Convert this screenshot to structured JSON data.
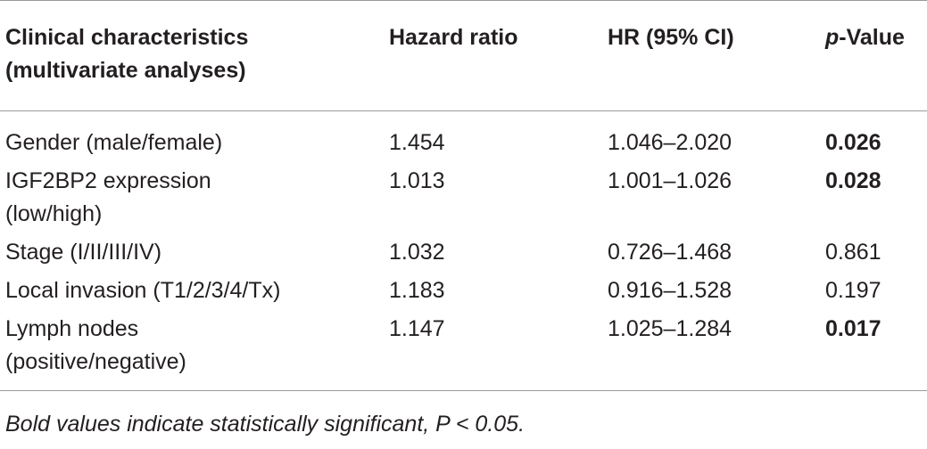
{
  "table": {
    "headers": {
      "characteristics_line1": "Clinical characteristics",
      "characteristics_line2": "(multivariate analyses)",
      "hazard_ratio": "Hazard ratio",
      "hr_ci": "HR (95% CI)",
      "p_value_prefix": "p",
      "p_value_suffix": "-Value"
    },
    "rows": [
      {
        "characteristic_line1": "Gender (male/female)",
        "characteristic_line2": "",
        "hazard_ratio": "1.454",
        "hr_ci": "1.046–2.020",
        "p_value": "0.026",
        "significant": true
      },
      {
        "characteristic_line1": "IGF2BP2 expression",
        "characteristic_line2": "(low/high)",
        "hazard_ratio": "1.013",
        "hr_ci": "1.001–1.026",
        "p_value": "0.028",
        "significant": true
      },
      {
        "characteristic_line1": "Stage (I/II/III/IV)",
        "characteristic_line2": "",
        "hazard_ratio": "1.032",
        "hr_ci": "0.726–1.468",
        "p_value": "0.861",
        "significant": false
      },
      {
        "characteristic_line1": "Local invasion (T1/2/3/4/Tx)",
        "characteristic_line2": "",
        "hazard_ratio": "1.183",
        "hr_ci": "0.916–1.528",
        "p_value": "0.197",
        "significant": false
      },
      {
        "characteristic_line1": "Lymph nodes",
        "characteristic_line2": "(positive/negative)",
        "hazard_ratio": "1.147",
        "hr_ci": "1.025–1.284",
        "p_value": "0.017",
        "significant": true
      }
    ]
  },
  "footnote": "Bold values indicate statistically significant, P < 0.05."
}
